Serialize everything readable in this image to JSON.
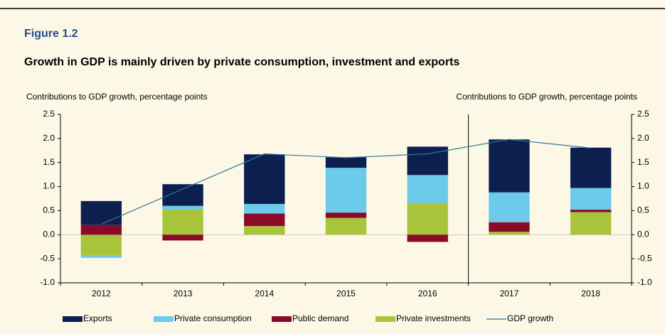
{
  "chart_data": {
    "type": "bar",
    "figure_label": "Figure 1.2",
    "title": "Growth in GDP is mainly driven by private consumption, investment and exports",
    "ylabel": "Contributions to GDP growth, percentage points",
    "y2label": "Contributions to GDP growth, percentage points",
    "categories": [
      "2012",
      "2013",
      "2014",
      "2015",
      "2016",
      "2017",
      "2018"
    ],
    "series": [
      {
        "name": "Exports",
        "color": "#0d1f4f",
        "type": "bar",
        "values": [
          0.5,
          0.45,
          1.03,
          0.22,
          0.59,
          1.1,
          0.84
        ]
      },
      {
        "name": "Private consumption",
        "color": "#6ccbeb",
        "type": "bar",
        "values": [
          -0.05,
          0.08,
          0.2,
          0.93,
          0.58,
          0.62,
          0.45
        ]
      },
      {
        "name": "Public demand",
        "color": "#8b0a2a",
        "type": "bar",
        "values": [
          0.2,
          -0.12,
          0.26,
          0.11,
          -0.15,
          0.2,
          0.05
        ]
      },
      {
        "name": "Private investments",
        "color": "#a8c43a",
        "type": "bar",
        "values": [
          -0.43,
          0.52,
          0.18,
          0.35,
          0.66,
          0.06,
          0.47
        ]
      },
      {
        "name": "GDP growth",
        "color": "#2a7aa0",
        "type": "line",
        "values": [
          0.22,
          0.95,
          1.68,
          1.6,
          1.68,
          1.98,
          1.8
        ]
      }
    ],
    "ylim": [
      -1.0,
      2.5
    ],
    "yticks": [
      {
        "value": -1.0,
        "label": "-1.0"
      },
      -0.5,
      {
        "value": 0.0,
        "label": "0.0"
      },
      0.5,
      {
        "value": 1.0,
        "label": "1.0"
      },
      1.5,
      {
        "value": 2.0,
        "label": "2.0"
      },
      2.5
    ],
    "y2lim": [
      -1.0,
      2.5
    ],
    "y2ticks": [
      {
        "value": -1.0,
        "label": "-1.0"
      },
      -0.5,
      {
        "value": 0.0,
        "label": "0.0"
      },
      0.5,
      {
        "value": 1.0,
        "label": "1.0"
      },
      1.5,
      {
        "value": 2.0,
        "label": "2.0"
      },
      2.5
    ],
    "legend": "bottom"
  }
}
